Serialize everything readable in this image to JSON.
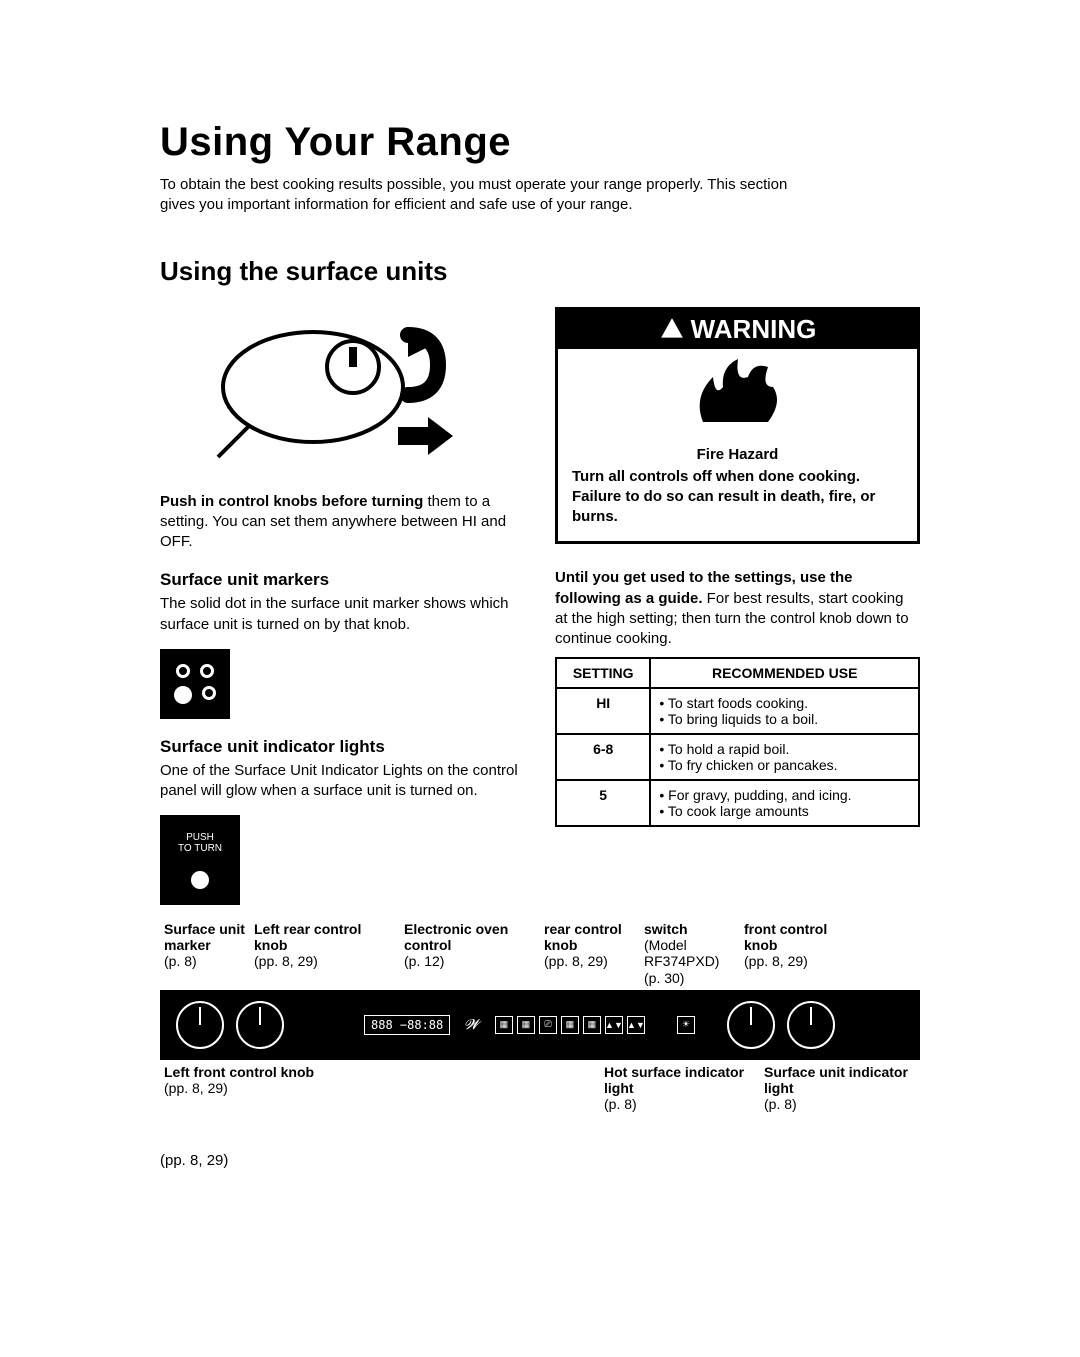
{
  "title": "Using Your Range",
  "intro": "To obtain the best cooking results possible, you must operate your range properly. This section gives you important information for efficient and safe use of your range.",
  "section_heading": "Using the surface units",
  "knob_caption_bold": "Push in control knobs before turning",
  "knob_caption_rest": " them to a setting. You can set them anywhere between HI and OFF.",
  "markers_heading": "Surface unit markers",
  "markers_text": "The solid dot in the surface unit marker shows which surface unit is turned on by that knob.",
  "indicator_heading": "Surface unit indicator lights",
  "indicator_text": "One of the Surface Unit Indicator Lights on the control panel will glow when a surface unit is turned on.",
  "indicator_box_line1": "PUSH",
  "indicator_box_line2": "TO TURN",
  "warning": {
    "header": "WARNING",
    "hazard": "Fire Hazard",
    "line1": "Turn all controls off when done cooking.",
    "line2": "Failure to do so can result in death, fire, or burns."
  },
  "guide_bold": "Until you get used to the settings, use the following as a guide.",
  "guide_rest": " For best results, start cooking at the high setting; then turn the control knob down to continue cooking.",
  "table": {
    "col_setting": "SETTING",
    "col_use": "RECOMMENDED USE",
    "rows": [
      {
        "setting": "HI",
        "uses": [
          "To start foods cooking.",
          "To bring liquids to a boil."
        ]
      },
      {
        "setting": "6-8",
        "uses": [
          "To hold a rapid boil.",
          "To fry chicken or pancakes."
        ]
      },
      {
        "setting": "5",
        "uses": [
          "For gravy, pudding, and icing.",
          "To cook large amounts"
        ]
      }
    ]
  },
  "panel": {
    "top_labels": {
      "surface_marker": {
        "title": "Surface unit marker",
        "sub": "(p. 8)"
      },
      "left_rear": {
        "title": "Left rear control knob",
        "sub": "(pp. 8, 29)"
      },
      "oven": {
        "title": "Electronic oven control",
        "sub": "(p. 12)"
      },
      "rear": {
        "title": "rear control knob",
        "sub": "(pp. 8, 29)"
      },
      "switch": {
        "title": "switch",
        "sub1": "(Model RF374PXD)",
        "sub2": "(p. 30)"
      },
      "front": {
        "title": "front control knob",
        "sub": "(pp. 8, 29)"
      }
    },
    "display": "888 −88:88",
    "bottom_labels": {
      "left_front": {
        "title": "Left front control knob",
        "sub": "(pp. 8, 29)"
      },
      "hot": {
        "title": "Hot surface indicator light",
        "sub": "(p. 8)"
      },
      "surf_light": {
        "title": "Surface unit indicator light",
        "sub": "(p. 8)"
      }
    }
  },
  "footer_ref": "(pp. 8, 29)"
}
